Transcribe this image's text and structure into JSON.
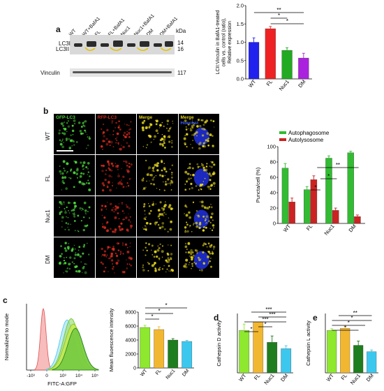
{
  "panel_a": {
    "label": "a",
    "lanes": [
      "WT",
      "WT+BafA1",
      "FL",
      "FL+BafA1",
      "Nuc1",
      "Nuc1+BafA1",
      "DM",
      "DM+BafA1"
    ],
    "kda": "kDa",
    "lc3i": "LC3I",
    "lc3ii": "LC3II",
    "mw_14": "14",
    "mw_16": "16",
    "vinculin": "Vinculin",
    "mw_117": "117"
  },
  "panel_b": {
    "label": "b",
    "columns": [
      "GFP-LC3",
      "RFP-LC3",
      "Merge",
      "Merge"
    ],
    "column_extra": "Hoechst",
    "rows": [
      "WT",
      "FL",
      "Nuc1",
      "DM"
    ]
  },
  "panel_c": {
    "label": "c"
  },
  "panel_d": {
    "label": "d"
  },
  "panel_e": {
    "label": "e"
  },
  "flow": {
    "ylabel": "Normalized to mode",
    "xlabel": "FITC-A:GFP",
    "ticks": [
      "-10³",
      "0",
      "10³",
      "10⁴",
      "10⁵"
    ]
  },
  "chart_data": [
    {
      "id": "lc3-ratio",
      "type": "bar",
      "categories": [
        "WT",
        "FL",
        "Nuc1",
        "DM"
      ],
      "values": [
        1.0,
        1.37,
        0.78,
        0.57
      ],
      "errors": [
        0.12,
        0.06,
        0.07,
        0.13
      ],
      "colors": [
        "#2222ee",
        "#ee2222",
        "#22aa22",
        "#aa22dd"
      ],
      "ylabel": "LCII:Vinculin in BafA1-treated cells vs. control (ratio), Relative expression",
      "ylim": [
        0,
        2.0
      ],
      "yticks": [
        "0.0",
        "0.5",
        "1.0",
        "1.5",
        "2.0"
      ],
      "significance": [
        "**",
        "*",
        "*"
      ]
    },
    {
      "id": "puncta",
      "type": "bar",
      "categories": [
        "WT",
        "FL",
        "Nuc1",
        "DM"
      ],
      "series": [
        {
          "name": "Autophagosome",
          "values": [
            72,
            44,
            85,
            92
          ],
          "errors": [
            6,
            4,
            3,
            2
          ],
          "color": "#33bb33"
        },
        {
          "name": "Autolysosome",
          "values": [
            28,
            57,
            17,
            9
          ],
          "errors": [
            5,
            5,
            3,
            2
          ],
          "color": "#cc2222"
        }
      ],
      "ylabel": "Puncta/cell (%)",
      "ylim": [
        0,
        100
      ],
      "yticks": [
        "0",
        "20",
        "40",
        "60",
        "80",
        "100"
      ],
      "significance": [
        "*",
        "*",
        "**"
      ]
    },
    {
      "id": "mfi",
      "type": "bar",
      "categories": [
        "WT",
        "FL",
        "Nuc1",
        "DM"
      ],
      "values": [
        5800,
        5500,
        4000,
        3800
      ],
      "errors": [
        300,
        400,
        200,
        150
      ],
      "colors": [
        "#8ee82d",
        "#f2b731",
        "#1e7d1e",
        "#3cc8ee"
      ],
      "ylabel": "Mean fluoescence intensity",
      "ylim": [
        0,
        8000
      ],
      "yticks": [
        "0",
        "2000",
        "4000",
        "6000",
        "8000"
      ],
      "significance": [
        "*",
        "*",
        "*"
      ]
    },
    {
      "id": "cathepsin-d",
      "type": "bar",
      "categories": [
        "WT",
        "FL",
        "Nuc1",
        "DM"
      ],
      "values": [
        1.0,
        1.2,
        0.72,
        0.57
      ],
      "errors": [
        0.15,
        0.0,
        0.15,
        0.07
      ],
      "colors": [
        "#8ee82d",
        "#f2b731",
        "#1e7d1e",
        "#3cc8ee"
      ],
      "ylabel": "Cathepsin D activity",
      "ylim": [
        0,
        1.4
      ],
      "significance": [
        "*",
        "*",
        "***",
        "***",
        "***"
      ]
    },
    {
      "id": "cathepsin-l",
      "type": "bar",
      "categories": [
        "WT",
        "FL",
        "Nuc1",
        "DM"
      ],
      "values": [
        1.0,
        1.05,
        0.65,
        0.5
      ],
      "errors": [
        0.04,
        0.05,
        0.1,
        0.04
      ],
      "colors": [
        "#8ee82d",
        "#f2b731",
        "#1e7d1e",
        "#3cc8ee"
      ],
      "ylabel": "Cathepsin L activity",
      "ylim": [
        0,
        1.4
      ],
      "significance": [
        "*",
        "*",
        "*",
        "**"
      ]
    }
  ]
}
